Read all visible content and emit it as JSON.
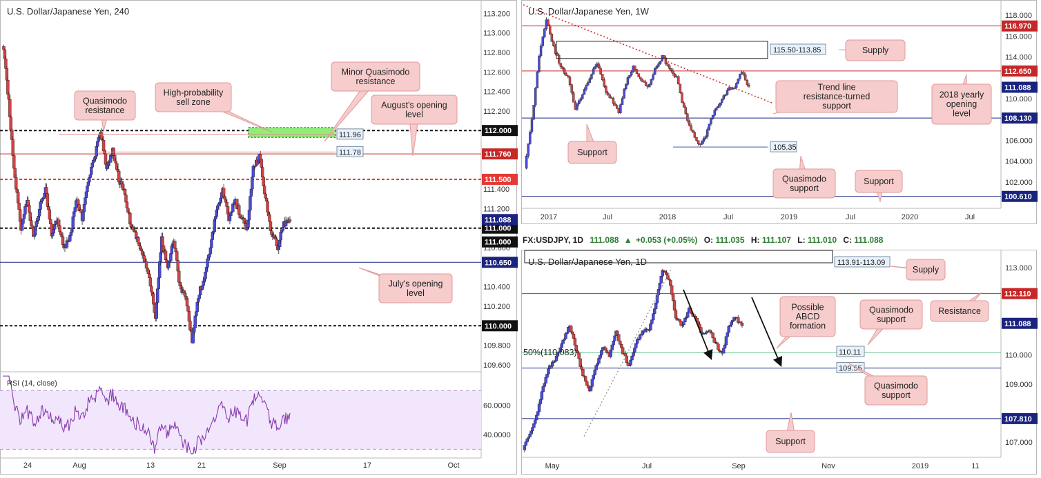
{
  "chart_data": [
    {
      "type": "candlestick",
      "title": "U.S. Dollar/Japanese Yen, 240",
      "ylim": [
        109.55,
        113.28
      ],
      "xticks": [
        "24",
        "Aug",
        "13",
        "21",
        "Sep",
        "17",
        "Oct"
      ],
      "yticks": [
        "113.200",
        "113.000",
        "112.800",
        "112.600",
        "112.400",
        "112.200",
        "111.400",
        "111.200",
        "110.800",
        "110.400",
        "110.200",
        "109.800",
        "109.600"
      ],
      "levels": [
        {
          "value": 112.0,
          "label": "112.000",
          "style": "black-dashed"
        },
        {
          "value": 111.76,
          "label": "111.760",
          "style": "red-solid"
        },
        {
          "value": 111.5,
          "label": "111.500",
          "style": "red-dashed"
        },
        {
          "value": 111.0,
          "label": "111.000",
          "style": "black-dashed"
        },
        {
          "value": 110.65,
          "label": "110.650",
          "style": "blue-solid"
        },
        {
          "value": 110.0,
          "label": "110.000",
          "style": "black-dashed"
        }
      ],
      "current_price": {
        "value": 111.088,
        "label": "111.088"
      },
      "current_level_label": "111.000",
      "zone_labels": [
        "111.96",
        "111.78"
      ],
      "annotations": [
        "Quasimodo resistance",
        "High-probability sell zone",
        "Minor Quasimodo resistance",
        "August's opening level",
        "July's opening level"
      ],
      "rsi": {
        "title": "RSI (14, close)",
        "ylim": [
          25,
          82
        ],
        "yticks": [
          "60.0000",
          "40.0000"
        ],
        "band": [
          30,
          70
        ]
      },
      "price_path": [
        [
          0,
          112.9
        ],
        [
          6,
          112.3
        ],
        [
          12,
          111.5
        ],
        [
          18,
          111.0
        ],
        [
          24,
          111.3
        ],
        [
          30,
          110.9
        ],
        [
          36,
          111.2
        ],
        [
          42,
          111.4
        ],
        [
          48,
          110.95
        ],
        [
          54,
          111.1
        ],
        [
          60,
          110.8
        ],
        [
          66,
          110.9
        ],
        [
          72,
          111.3
        ],
        [
          78,
          111.1
        ],
        [
          84,
          111.5
        ],
        [
          90,
          111.7
        ],
        [
          96,
          112.0
        ],
        [
          102,
          111.6
        ],
        [
          108,
          111.8
        ],
        [
          114,
          111.5
        ],
        [
          120,
          111.35
        ],
        [
          126,
          111.0
        ],
        [
          132,
          110.9
        ],
        [
          138,
          110.7
        ],
        [
          144,
          110.5
        ],
        [
          150,
          110.1
        ],
        [
          156,
          110.9
        ],
        [
          162,
          110.6
        ],
        [
          168,
          110.9
        ],
        [
          174,
          110.4
        ],
        [
          180,
          110.25
        ],
        [
          186,
          109.85
        ],
        [
          192,
          110.3
        ],
        [
          198,
          110.5
        ],
        [
          204,
          110.8
        ],
        [
          210,
          111.2
        ],
        [
          216,
          111.4
        ],
        [
          222,
          111.1
        ],
        [
          228,
          111.3
        ],
        [
          234,
          111.1
        ],
        [
          240,
          111.0
        ],
        [
          246,
          111.6
        ],
        [
          252,
          111.75
        ],
        [
          258,
          111.3
        ],
        [
          264,
          110.95
        ],
        [
          270,
          110.8
        ],
        [
          276,
          111.05
        ],
        [
          282,
          111.1
        ]
      ]
    },
    {
      "type": "candlestick",
      "title": "U.S. Dollar/Japanese Yen, 1W",
      "ylim": [
        99.6,
        119.2
      ],
      "xticks": [
        "2017",
        "Jul",
        "2018",
        "Jul",
        "2019",
        "Jul",
        "2020",
        "Jul"
      ],
      "yticks": [
        "118.000",
        "116.000",
        "114.000",
        "110.000",
        "106.000",
        "104.000",
        "102.000"
      ],
      "levels": [
        {
          "value": 116.97,
          "label": "116.970",
          "style": "red-solid"
        },
        {
          "value": 112.65,
          "label": "112.650",
          "style": "red-solid"
        },
        {
          "value": 108.13,
          "label": "108.130",
          "style": "blue-solid"
        },
        {
          "value": 100.61,
          "label": "100.610",
          "style": "blue-solid"
        }
      ],
      "current_price": {
        "value": 111.088,
        "label": "111.088"
      },
      "zone_labels": [
        "115.50-113.85",
        "105.35"
      ],
      "annotations": [
        "Supply",
        "Trend line resistance-turned support",
        "2018 yearly opening level",
        "Support",
        "Quasimodo support",
        "Support"
      ],
      "price_path": [
        [
          0,
          103.5
        ],
        [
          4,
          108
        ],
        [
          8,
          114
        ],
        [
          12,
          117.5
        ],
        [
          16,
          115
        ],
        [
          20,
          113
        ],
        [
          24,
          112
        ],
        [
          28,
          109
        ],
        [
          32,
          110.5
        ],
        [
          36,
          112
        ],
        [
          40,
          113.5
        ],
        [
          44,
          111
        ],
        [
          48,
          110
        ],
        [
          52,
          108.5
        ],
        [
          56,
          111.5
        ],
        [
          60,
          113
        ],
        [
          64,
          112
        ],
        [
          68,
          111
        ],
        [
          72,
          113
        ],
        [
          76,
          114
        ],
        [
          80,
          113
        ],
        [
          84,
          112
        ],
        [
          88,
          109
        ],
        [
          92,
          107
        ],
        [
          96,
          105.5
        ],
        [
          100,
          106.5
        ],
        [
          104,
          108.5
        ],
        [
          108,
          109.5
        ],
        [
          112,
          110.8
        ],
        [
          116,
          111.2
        ],
        [
          120,
          112.5
        ],
        [
          124,
          111.1
        ]
      ]
    },
    {
      "type": "candlestick",
      "title": "U.S. Dollar/Japanese Yen, 1D",
      "ylim": [
        106.55,
        113.55
      ],
      "xticks": [
        "May",
        "Jul",
        "Sep",
        "Nov",
        "2019",
        "11"
      ],
      "yticks": [
        "113.000",
        "111.000",
        "110.000",
        "109.000",
        "107.000"
      ],
      "levels": [
        {
          "value": 112.11,
          "label": "112.110",
          "style": "red-solid"
        },
        {
          "value": 110.08,
          "label": "110.083",
          "style": "green-solid"
        },
        {
          "value": 109.55,
          "label": "109.55",
          "style": "blue-solid"
        },
        {
          "value": 107.81,
          "label": "107.810",
          "style": "blue-solid"
        }
      ],
      "current_price": {
        "value": 111.088,
        "label": "111.088"
      },
      "zone_labels": [
        "113.91-113.09",
        "110.11",
        "109.55"
      ],
      "fib_label": "50%(110.083)",
      "annotations": [
        "Supply",
        "Resistance",
        "Possible ABCD formation",
        "Quasimodo support",
        "Quasimodo support",
        "Support"
      ],
      "price_path": [
        [
          0,
          106.8
        ],
        [
          5,
          107.3
        ],
        [
          10,
          107.9
        ],
        [
          15,
          108.9
        ],
        [
          20,
          109.6
        ],
        [
          25,
          109.9
        ],
        [
          30,
          110.5
        ],
        [
          35,
          111.0
        ],
        [
          40,
          110.2
        ],
        [
          45,
          109.3
        ],
        [
          50,
          108.8
        ],
        [
          55,
          109.6
        ],
        [
          60,
          110.3
        ],
        [
          65,
          110.0
        ],
        [
          70,
          110.8
        ],
        [
          75,
          110.1
        ],
        [
          80,
          109.6
        ],
        [
          85,
          110.4
        ],
        [
          90,
          110.8
        ],
        [
          95,
          110.9
        ],
        [
          100,
          111.8
        ],
        [
          105,
          112.9
        ],
        [
          110,
          112.6
        ],
        [
          115,
          111.3
        ],
        [
          120,
          111.0
        ],
        [
          125,
          111.6
        ],
        [
          130,
          111.2
        ],
        [
          135,
          110.7
        ],
        [
          140,
          110.9
        ],
        [
          145,
          110.4
        ],
        [
          150,
          110.0
        ],
        [
          155,
          111.0
        ],
        [
          160,
          111.3
        ],
        [
          165,
          111.0
        ]
      ]
    }
  ],
  "header_bar": {
    "symbol": "FX:USDJPY, 1D",
    "last": "111.088",
    "change": "+0.053 (+0.05%)",
    "o_label": "O:",
    "o": "111.035",
    "h_label": "H:",
    "h": "111.107",
    "l_label": "L:",
    "l": "111.010",
    "c_label": "C:",
    "c": "111.088"
  },
  "colors": {
    "up": "#4a4ad8",
    "down": "#d14343",
    "resistance": "#c62828",
    "support": "#1a237e",
    "callout_bg": "#f6cccc",
    "callout_border": "#e19a9a",
    "rsi_band": "#f1e6fb",
    "rsi_line": "#8a3ab0",
    "sell_zone": "#90ee78",
    "fib": "#3cb371"
  }
}
